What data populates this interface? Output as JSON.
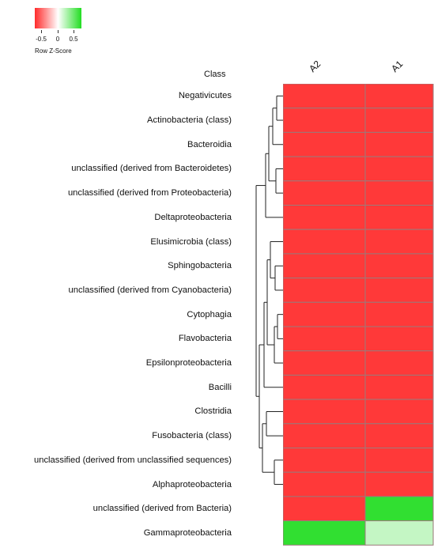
{
  "chart_data": {
    "type": "heatmap",
    "title": "",
    "ylabel": "Class",
    "columns": [
      "A2",
      "A1"
    ],
    "rows": [
      "Negativicutes",
      "Actinobacteria (class)",
      "Bacteroidia",
      "unclassified (derived from Bacteroidetes)",
      "unclassified (derived from Proteobacteria)",
      "Deltaproteobacteria",
      "Elusimicrobia (class)",
      "Sphingobacteria",
      "unclassified (derived from Cyanobacteria)",
      "Cytophagia",
      "Flavobacteria",
      "Epsilonproteobacteria",
      "Bacilli",
      "Clostridia",
      "Fusobacteria (class)",
      "unclassified (derived from unclassified sequences)",
      "Alphaproteobacteria",
      "unclassified (derived from Bacteria)",
      "Gammaproteobacteria"
    ],
    "values": [
      [
        -0.7,
        -0.7
      ],
      [
        -0.7,
        -0.7
      ],
      [
        -0.7,
        -0.7
      ],
      [
        -0.7,
        -0.7
      ],
      [
        -0.7,
        -0.7
      ],
      [
        -0.7,
        -0.7
      ],
      [
        -0.7,
        -0.7
      ],
      [
        -0.7,
        -0.7
      ],
      [
        -0.7,
        -0.7
      ],
      [
        -0.7,
        -0.7
      ],
      [
        -0.7,
        -0.7
      ],
      [
        -0.7,
        -0.7
      ],
      [
        -0.7,
        -0.7
      ],
      [
        -0.7,
        -0.7
      ],
      [
        -0.7,
        -0.7
      ],
      [
        -0.7,
        -0.7
      ],
      [
        -0.7,
        -0.7
      ],
      [
        -0.7,
        0.7
      ],
      [
        0.7,
        0.2
      ]
    ],
    "legend": {
      "title": "Row Z-Score",
      "ticks": [
        "-0.5",
        "0",
        "0.5"
      ],
      "range": [
        -0.75,
        0.75
      ],
      "low_color": "#ff2b2b",
      "mid_color": "#ffffff",
      "high_color": "#22dd22"
    },
    "grid": true,
    "row_dendrogram": true
  }
}
